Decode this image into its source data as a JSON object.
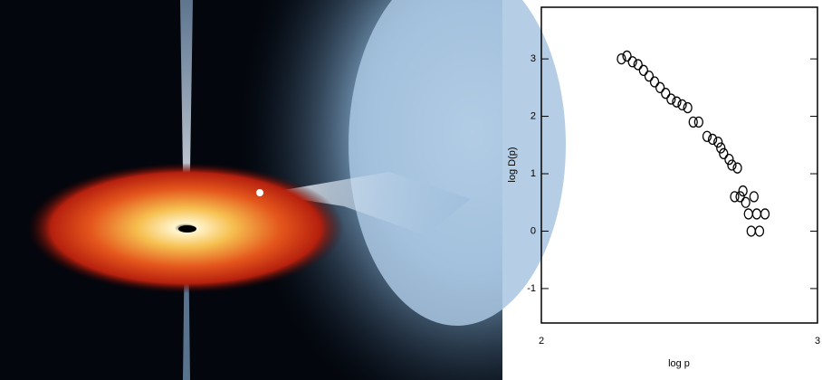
{
  "chart_data": {
    "type": "scatter",
    "x_label": "log p",
    "y_label": "log D(p)",
    "x": [
      2.29,
      2.31,
      2.33,
      2.35,
      2.37,
      2.39,
      2.41,
      2.43,
      2.45,
      2.47,
      2.49,
      2.51,
      2.53,
      2.55,
      2.57,
      2.6,
      2.62,
      2.64,
      2.65,
      2.66,
      2.68,
      2.69,
      2.71,
      2.7,
      2.72,
      2.73,
      2.74,
      2.75,
      2.77,
      2.76,
      2.79,
      2.78,
      2.81
    ],
    "values": [
      3.0,
      3.05,
      2.95,
      2.9,
      2.8,
      2.7,
      2.6,
      2.5,
      2.4,
      2.3,
      2.25,
      2.2,
      2.15,
      1.9,
      1.9,
      1.65,
      1.6,
      1.55,
      1.45,
      1.35,
      1.25,
      1.15,
      1.1,
      0.6,
      0.6,
      0.7,
      0.5,
      0.3,
      0.6,
      0.0,
      0.0,
      0.3,
      0.3
    ],
    "xlim": [
      2,
      3
    ],
    "ylim": [
      -1.6,
      3.9
    ],
    "xticks": [
      2,
      3
    ],
    "yticks": [
      -1,
      0,
      1,
      2,
      3
    ],
    "marker_color": "#000000"
  }
}
